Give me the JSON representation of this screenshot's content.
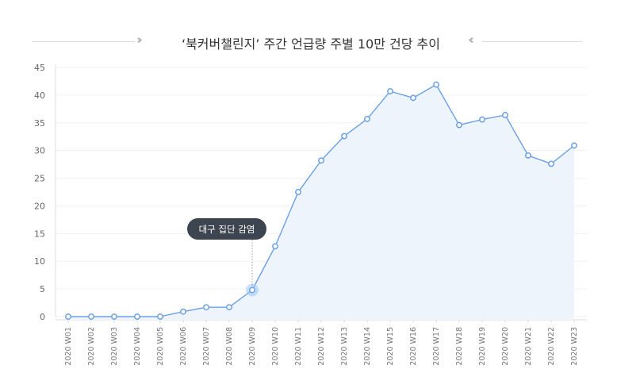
{
  "chart_data": {
    "type": "area",
    "title": "‘북커버챌린지’ 주간 언급량 주별 10만 건당 추이",
    "xlabel": "",
    "ylabel": "",
    "categories": [
      "2020 W01",
      "2020 W02",
      "2020 W03",
      "2020 W04",
      "2020 W05",
      "2020 W06",
      "2020 W07",
      "2020 W08",
      "2020 W09",
      "2020 W10",
      "2020 W11",
      "2020 W12",
      "2020 W13",
      "2020 W14",
      "2020 W15",
      "2020 W16",
      "2020 W17",
      "2020 W18",
      "2020 W19",
      "2020 W20",
      "2020 W21",
      "2020 W22",
      "2020 W23"
    ],
    "values": [
      0,
      0,
      0,
      0,
      0,
      0.9,
      1.7,
      1.7,
      4.8,
      12.7,
      22.5,
      28.2,
      32.6,
      35.7,
      40.7,
      39.5,
      41.9,
      34.6,
      35.6,
      36.4,
      29.1,
      27.6,
      30.9
    ],
    "yticks": [
      0,
      5,
      10,
      15,
      20,
      25,
      30,
      35,
      40,
      45
    ],
    "ylim": [
      0,
      45
    ],
    "grid": true,
    "annotation": {
      "category": "2020 W09",
      "label": "대구 집단 감염"
    },
    "colors": {
      "line": "#6ba0e6",
      "fill": "#eef4fc",
      "highlight": "#9cc4f7",
      "tooltip": "#3d4550"
    }
  }
}
